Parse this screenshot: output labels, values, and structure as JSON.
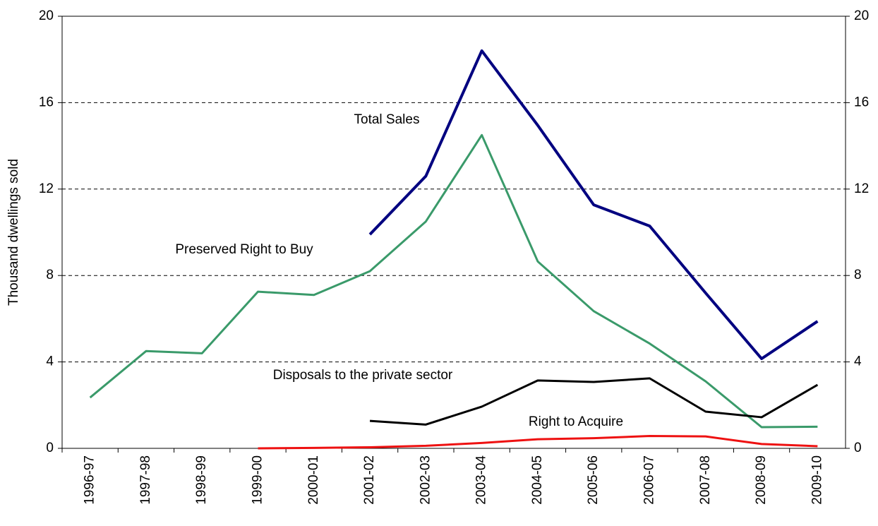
{
  "chart_data": {
    "type": "line",
    "y_label": "Thousand dwellings sold",
    "categories": [
      "1996-97",
      "1997-98",
      "1998-99",
      "1999-00",
      "2000-01",
      "2001-02",
      "2002-03",
      "2003-04",
      "2004-05",
      "2005-06",
      "2006-07",
      "2007-08",
      "2008-09",
      "2009-10"
    ],
    "series": [
      {
        "name": "Total Sales",
        "color": "#000080",
        "width": 4,
        "values": [
          null,
          null,
          null,
          null,
          null,
          9.9,
          12.6,
          18.4,
          14.95,
          11.27,
          10.29,
          7.19,
          4.15,
          5.88
        ]
      },
      {
        "name": "Preserved Right to Buy",
        "color": "#3a9a6a",
        "width": 3,
        "values": [
          2.35,
          4.5,
          4.4,
          7.25,
          7.1,
          8.2,
          10.5,
          14.5,
          8.65,
          6.35,
          4.85,
          3.1,
          0.98,
          1.0
        ]
      },
      {
        "name": "Disposals to the private sector",
        "color": "#000000",
        "width": 3,
        "values": [
          null,
          null,
          null,
          null,
          null,
          1.27,
          1.1,
          1.93,
          3.14,
          3.07,
          3.24,
          1.7,
          1.44,
          2.94
        ]
      },
      {
        "name": "Right to Acquire",
        "color": "#ee1111",
        "width": 3,
        "values": [
          null,
          null,
          null,
          0.0,
          0.02,
          0.05,
          0.12,
          0.25,
          0.42,
          0.47,
          0.57,
          0.55,
          0.2,
          0.1
        ]
      }
    ],
    "ylim": [
      0,
      20
    ],
    "yticks": [
      0,
      4,
      8,
      12,
      16,
      20
    ],
    "y2lim": [
      0,
      20
    ],
    "y2ticks": [
      0,
      4,
      8,
      12,
      16,
      20
    ],
    "grid": true
  }
}
